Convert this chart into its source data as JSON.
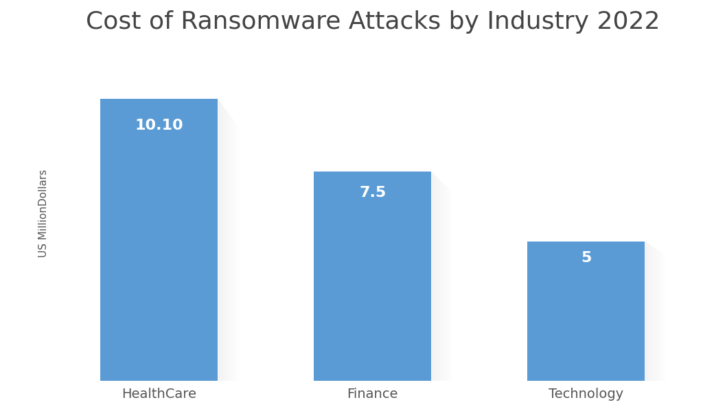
{
  "title": "Cost of Ransomware Attacks by Industry 2022",
  "categories": [
    "HealthCare",
    "Finance",
    "Technology"
  ],
  "values": [
    10.1,
    7.5,
    5
  ],
  "labels": [
    "10.10",
    "7.5",
    "5"
  ],
  "bar_color": "#5B9BD5",
  "bar_width": 0.55,
  "ylabel": "US MillionDollars",
  "background_color": "#ffffff",
  "title_fontsize": 26,
  "label_fontsize": 16,
  "ylabel_fontsize": 11,
  "xtick_fontsize": 14,
  "ylim": [
    0,
    12
  ],
  "label_color": "white",
  "shadow_color": "#d0d0d0"
}
